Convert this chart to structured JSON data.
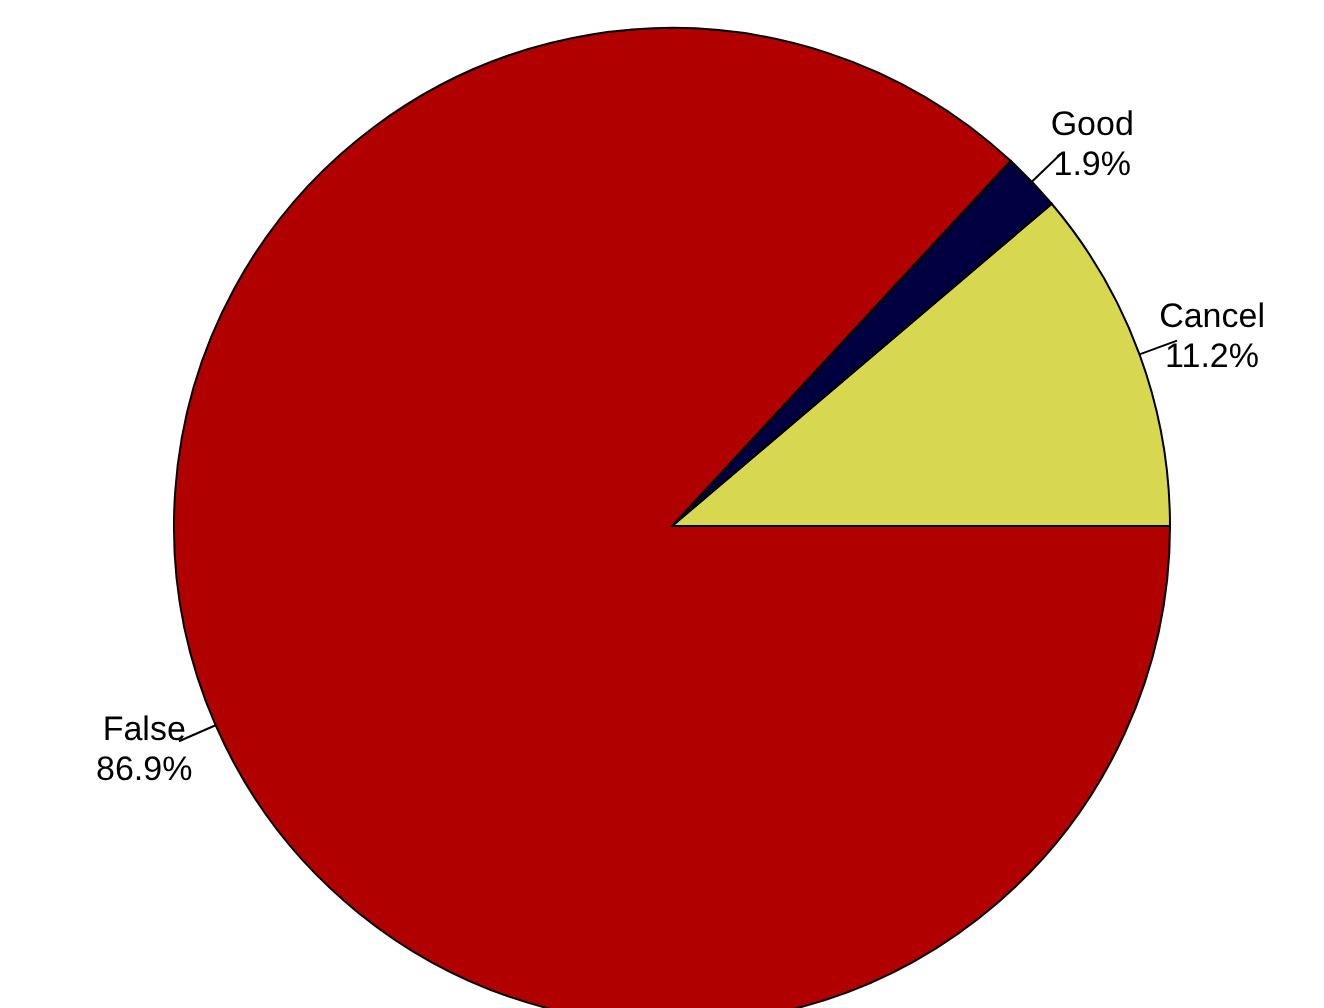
{
  "chart_data": {
    "type": "pie",
    "categories": [
      "Cancel",
      "Good",
      "False"
    ],
    "values": [
      11.2,
      1.9,
      86.9
    ],
    "value_labels": [
      "11.2%",
      "1.9%",
      "86.9%"
    ],
    "colors": [
      "#d8d850",
      "#000040",
      "#b00000"
    ],
    "legend": false
  }
}
